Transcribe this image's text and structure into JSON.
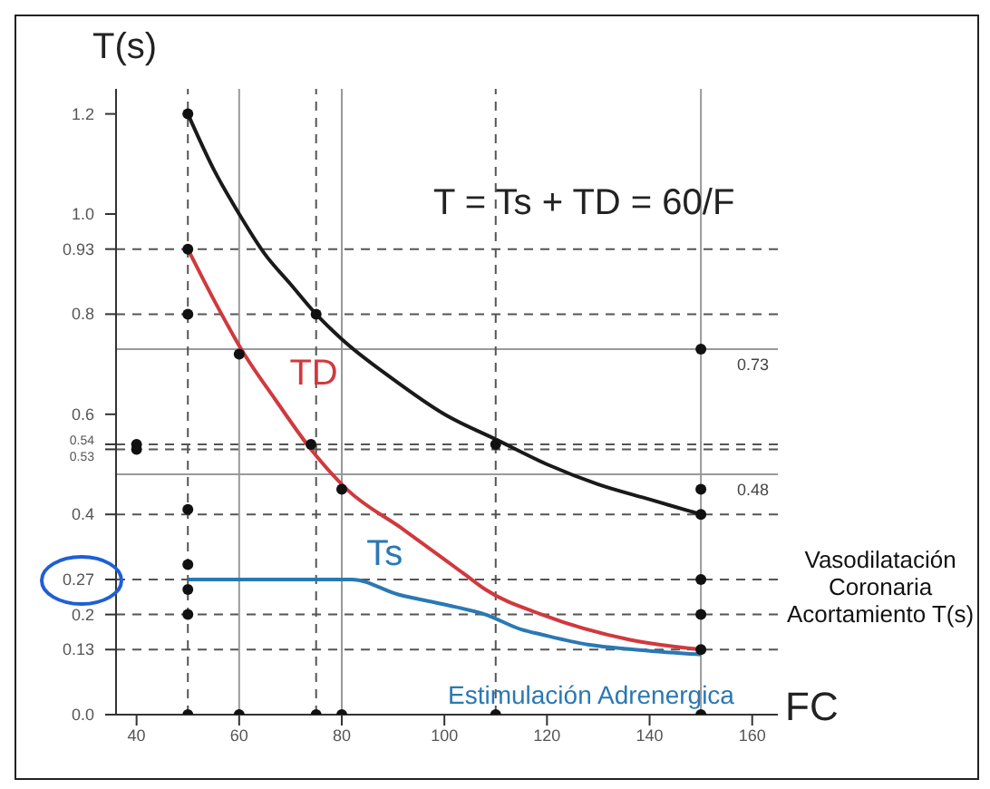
{
  "chart_data": {
    "type": "line",
    "ylabel": "T(s)",
    "xlabel": "FC",
    "annotations": [
      "T = Ts + TD = 60/F",
      "Estimulación Adrenergica",
      "Vasodilatación\nCoronaria\nAcortamiento T(s)"
    ],
    "xlim": [
      36,
      165
    ],
    "xticks": [
      40,
      60,
      80,
      100,
      120,
      140,
      160
    ],
    "ylim": [
      0,
      1.25
    ],
    "yticks": [
      {
        "value": 0,
        "label": "0.0"
      },
      0.13,
      0.2,
      0.27,
      0.4,
      0.53,
      0.54,
      0.6,
      0.8,
      0.93,
      {
        "value": 1,
        "label": "1.0"
      },
      1.2
    ],
    "series": [
      {
        "color": "#1a1a1a",
        "x": [
          50,
          55,
          60,
          65,
          70,
          75,
          80,
          90,
          100,
          110,
          120,
          130,
          140,
          150
        ],
        "values": [
          1.2,
          1.09,
          1.0,
          0.92,
          0.86,
          0.8,
          0.75,
          0.67,
          0.6,
          0.55,
          0.5,
          0.46,
          0.43,
          0.4
        ]
      },
      {
        "name": "TD",
        "color": "#d0393e",
        "x": [
          50,
          55,
          61,
          67,
          74,
          81,
          92,
          104,
          108,
          119,
          136,
          150
        ],
        "values": [
          0.93,
          0.83,
          0.72,
          0.63,
          0.53,
          0.45,
          0.37,
          0.28,
          0.25,
          0.2,
          0.15,
          0.13
        ]
      },
      {
        "name": "Ts",
        "color": "#2a78b4",
        "x": [
          50,
          60,
          70,
          82,
          91,
          100,
          108,
          115,
          119,
          128,
          137,
          150
        ],
        "values": [
          0.27,
          0.27,
          0.27,
          0.27,
          0.24,
          0.22,
          0.2,
          0.17,
          0.16,
          0.14,
          0.13,
          0.12
        ]
      },
      {
        "type": "scatter",
        "color": "#111111",
        "x": [
          50,
          50,
          50,
          75,
          60,
          74,
          80,
          110,
          150,
          150,
          150,
          150,
          150,
          150,
          40,
          40,
          50,
          50,
          50,
          50,
          50,
          60,
          75,
          80,
          110,
          150
        ],
        "values": [
          1.2,
          0.93,
          0.8,
          0.8,
          0.72,
          0.54,
          0.45,
          0.54,
          0.4,
          0.45,
          0.73,
          0.13,
          0.2,
          0.27,
          0.54,
          0.53,
          0.41,
          0.3,
          0.25,
          0.2,
          0,
          0,
          0,
          0,
          0,
          0
        ]
      }
    ],
    "ref_lines": [
      {
        "axis": "y",
        "value": 0.93,
        "color": "#555555",
        "line_style": "dashed"
      },
      {
        "axis": "y",
        "value": 0.8,
        "color": "#555555",
        "line_style": "dashed"
      },
      {
        "axis": "y",
        "value": 0.54,
        "color": "#555555",
        "line_style": "dashed"
      },
      {
        "axis": "y",
        "value": 0.53,
        "color": "#555555",
        "line_style": "dashed"
      },
      {
        "axis": "y",
        "value": 0.4,
        "color": "#555555",
        "line_style": "dashed"
      },
      {
        "axis": "y",
        "value": 0.27,
        "color": "#555555",
        "line_style": "dashed"
      },
      {
        "axis": "y",
        "value": 0.2,
        "color": "#555555",
        "line_style": "dashed"
      },
      {
        "axis": "y",
        "value": 0.13,
        "color": "#555555",
        "line_style": "dashed"
      },
      {
        "axis": "y",
        "value": 0.73,
        "label": "0.73",
        "color": "#999999",
        "line_style": "solid"
      },
      {
        "axis": "y",
        "value": 0.48,
        "label": "0.48",
        "color": "#999999",
        "line_style": "solid"
      },
      {
        "axis": "x",
        "value": 50,
        "color": "#555555",
        "line_style": "dashed"
      },
      {
        "axis": "x",
        "value": 75,
        "color": "#555555",
        "line_style": "dashed"
      },
      {
        "axis": "x",
        "value": 110,
        "color": "#555555",
        "line_style": "dashed"
      },
      {
        "axis": "x",
        "value": 60,
        "color": "#999999",
        "line_style": "solid"
      },
      {
        "axis": "x",
        "value": 80,
        "color": "#999999",
        "line_style": "solid"
      },
      {
        "axis": "x",
        "value": 150,
        "color": "#999999",
        "line_style": "solid"
      }
    ]
  }
}
